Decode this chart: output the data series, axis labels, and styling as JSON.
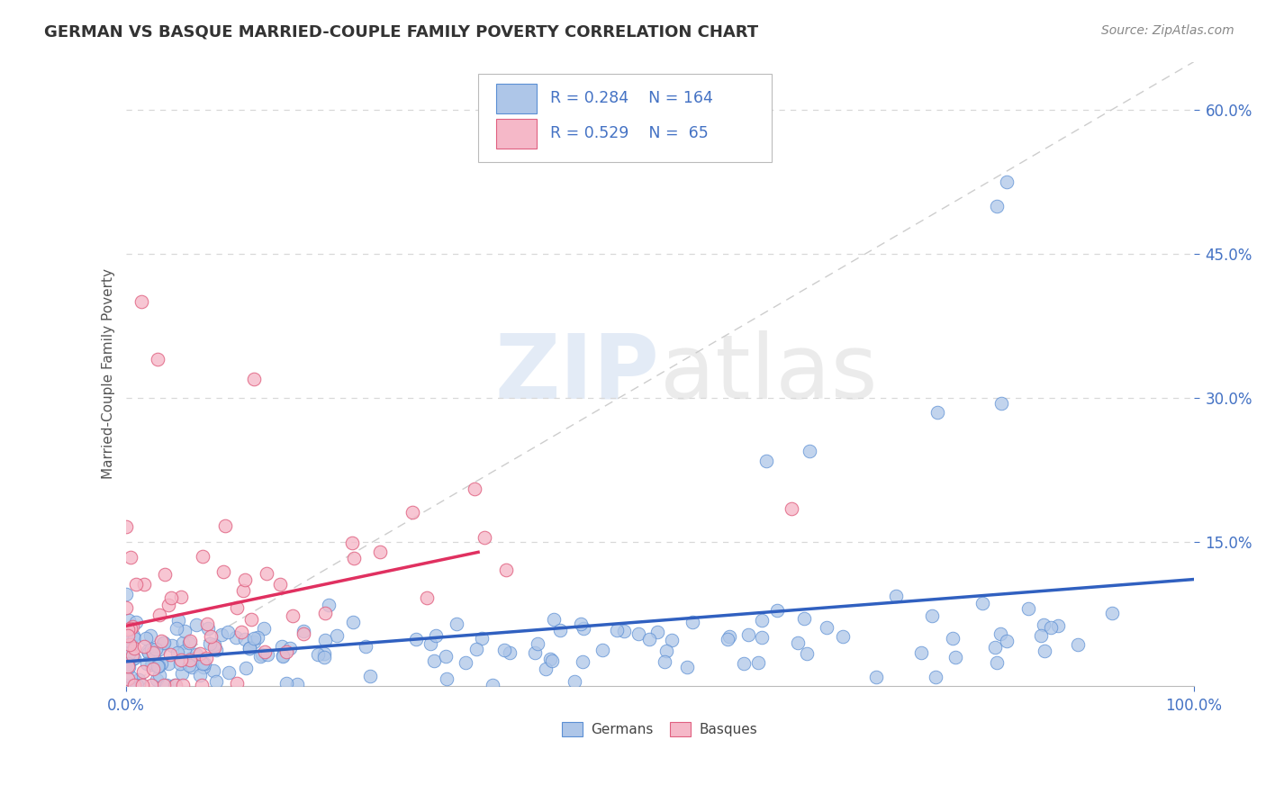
{
  "title": "GERMAN VS BASQUE MARRIED-COUPLE FAMILY POVERTY CORRELATION CHART",
  "source_text": "Source: ZipAtlas.com",
  "ylabel": "Married-Couple Family Poverty",
  "xlim": [
    0,
    1
  ],
  "ylim": [
    0,
    0.65
  ],
  "xtick_labels": [
    "0.0%",
    "100.0%"
  ],
  "ytick_values": [
    0.15,
    0.3,
    0.45,
    0.6
  ],
  "german_fill": "#aec6e8",
  "german_edge": "#5b8fd4",
  "basque_fill": "#f5b8c8",
  "basque_edge": "#e06080",
  "german_line_color": "#3060c0",
  "basque_line_color": "#e03060",
  "diag_line_color": "#c8c8c8",
  "watermark_color": "#c8d8ee",
  "background_color": "#ffffff",
  "grid_color": "#d8d8d8",
  "legend_text_color": "#4472c4",
  "title_color": "#333333",
  "source_color": "#888888",
  "axis_label_color": "#555555",
  "tick_color": "#4472c4"
}
